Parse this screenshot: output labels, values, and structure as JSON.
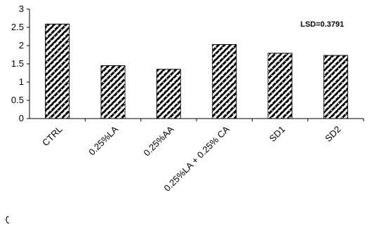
{
  "chart_data": {
    "type": "bar",
    "categories": [
      "CTRL",
      "0.25%LA",
      "0.25%AA",
      "0.25%LA + 0.25% CA",
      "SD1",
      "SD2"
    ],
    "values": [
      2.59,
      1.45,
      1.35,
      2.03,
      1.79,
      1.73
    ],
    "ylim": [
      0,
      3
    ],
    "yticks": [
      0,
      0.5,
      1,
      1.5,
      2,
      2.5,
      3
    ],
    "ytick_labels": [
      "0",
      "0.5",
      "1",
      "1.5",
      "2",
      "2.5",
      "3"
    ],
    "annotation": "LSD=0.3791",
    "bar_fill": "#ffffff",
    "bar_pattern": "diagonal-hatch-with-dots",
    "bar_color": "#000000",
    "grid": false,
    "legend": "none"
  },
  "side_mark": "ب"
}
